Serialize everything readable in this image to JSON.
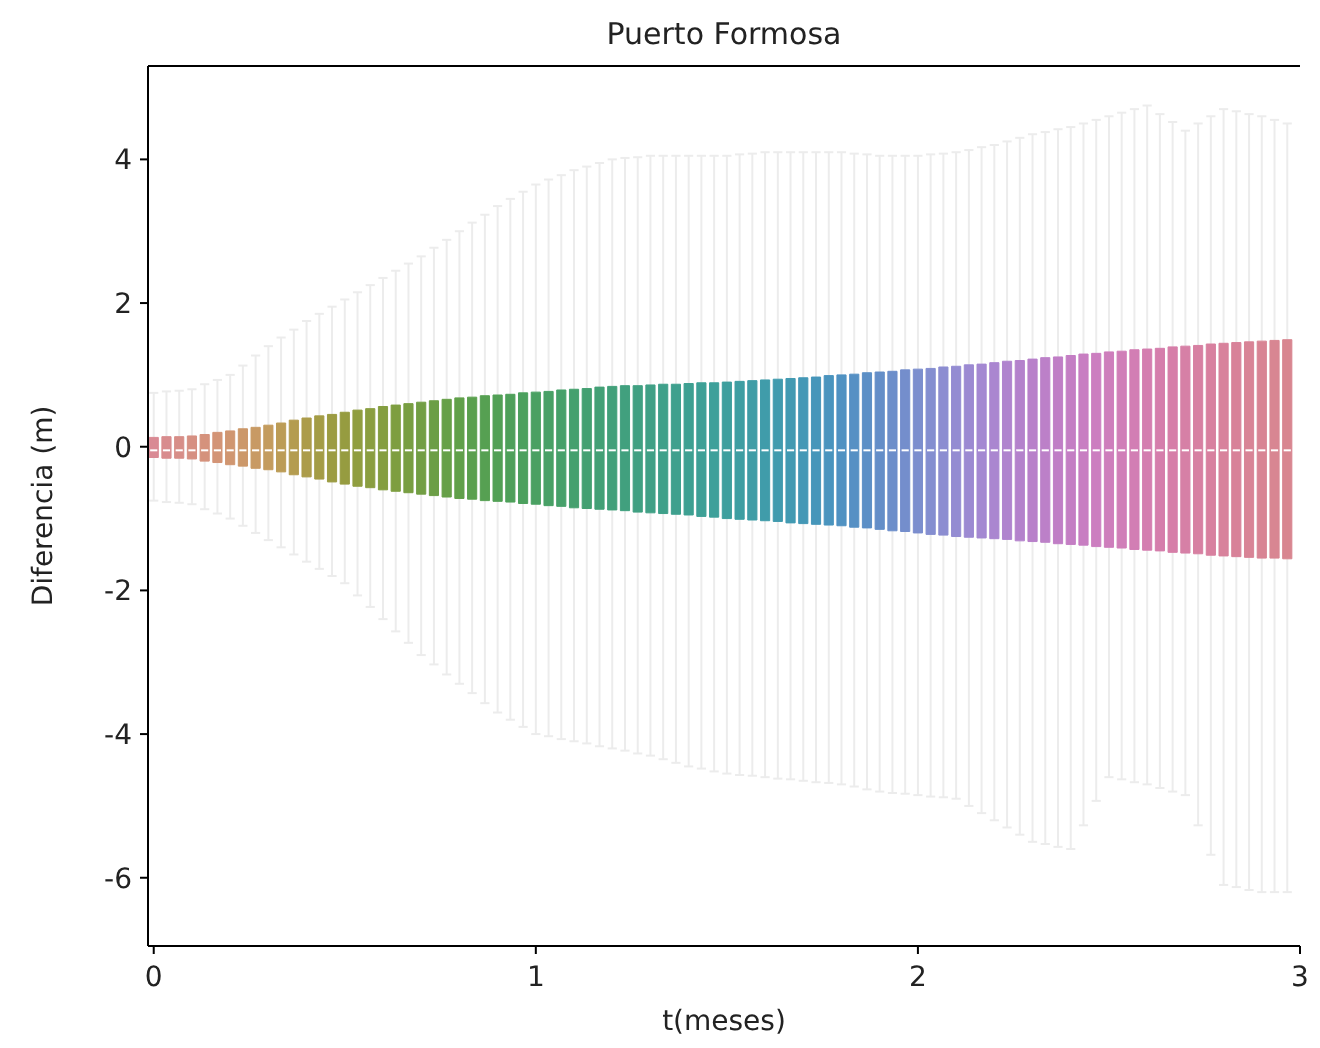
{
  "chart_data": {
    "type": "box",
    "title": "Puerto Formosa",
    "xlabel": "t(meses)",
    "ylabel": "Diferencia (m)",
    "categories": [
      "0",
      null,
      null,
      null,
      null,
      null,
      null,
      null,
      null,
      null,
      null,
      null,
      null,
      null,
      null,
      null,
      null,
      null,
      null,
      null,
      null,
      null,
      null,
      null,
      null,
      null,
      null,
      null,
      null,
      null,
      "1",
      null,
      null,
      null,
      null,
      null,
      null,
      null,
      null,
      null,
      null,
      null,
      null,
      null,
      null,
      null,
      null,
      null,
      null,
      null,
      null,
      null,
      null,
      null,
      null,
      null,
      null,
      null,
      null,
      null,
      "2",
      null,
      null,
      null,
      null,
      null,
      null,
      null,
      null,
      null,
      null,
      null,
      null,
      null,
      null,
      null,
      null,
      null,
      null,
      null,
      null,
      null,
      null,
      null,
      null,
      null,
      null,
      null,
      null,
      null,
      "3"
    ],
    "boxes": [
      {
        "low": -0.75,
        "q1": -0.15,
        "median": -0.05,
        "q3": 0.13,
        "high": 0.75
      },
      {
        "low": -0.77,
        "q1": -0.16,
        "median": -0.05,
        "q3": 0.14,
        "high": 0.77
      },
      {
        "low": -0.78,
        "q1": -0.16,
        "median": -0.05,
        "q3": 0.14,
        "high": 0.78
      },
      {
        "low": -0.8,
        "q1": -0.17,
        "median": -0.05,
        "q3": 0.15,
        "high": 0.8
      },
      {
        "low": -0.87,
        "q1": -0.2,
        "median": -0.05,
        "q3": 0.17,
        "high": 0.87
      },
      {
        "low": -0.93,
        "q1": -0.22,
        "median": -0.05,
        "q3": 0.2,
        "high": 0.93
      },
      {
        "low": -1.0,
        "q1": -0.25,
        "median": -0.05,
        "q3": 0.22,
        "high": 1.0
      },
      {
        "low": -1.1,
        "q1": -0.27,
        "median": -0.05,
        "q3": 0.25,
        "high": 1.13
      },
      {
        "low": -1.2,
        "q1": -0.3,
        "median": -0.05,
        "q3": 0.27,
        "high": 1.27
      },
      {
        "low": -1.3,
        "q1": -0.32,
        "median": -0.05,
        "q3": 0.3,
        "high": 1.4
      },
      {
        "low": -1.4,
        "q1": -0.35,
        "median": -0.05,
        "q3": 0.33,
        "high": 1.52
      },
      {
        "low": -1.5,
        "q1": -0.39,
        "median": -0.05,
        "q3": 0.37,
        "high": 1.63
      },
      {
        "low": -1.6,
        "q1": -0.42,
        "median": -0.05,
        "q3": 0.4,
        "high": 1.75
      },
      {
        "low": -1.7,
        "q1": -0.45,
        "median": -0.05,
        "q3": 0.43,
        "high": 1.85
      },
      {
        "low": -1.8,
        "q1": -0.49,
        "median": -0.05,
        "q3": 0.45,
        "high": 1.95
      },
      {
        "low": -1.9,
        "q1": -0.52,
        "median": -0.05,
        "q3": 0.48,
        "high": 2.05
      },
      {
        "low": -2.07,
        "q1": -0.55,
        "median": -0.05,
        "q3": 0.51,
        "high": 2.15
      },
      {
        "low": -2.23,
        "q1": -0.57,
        "median": -0.05,
        "q3": 0.53,
        "high": 2.25
      },
      {
        "low": -2.4,
        "q1": -0.6,
        "median": -0.05,
        "q3": 0.56,
        "high": 2.35
      },
      {
        "low": -2.57,
        "q1": -0.62,
        "median": -0.05,
        "q3": 0.58,
        "high": 2.45
      },
      {
        "low": -2.73,
        "q1": -0.64,
        "median": -0.05,
        "q3": 0.6,
        "high": 2.55
      },
      {
        "low": -2.9,
        "q1": -0.66,
        "median": -0.05,
        "q3": 0.62,
        "high": 2.65
      },
      {
        "low": -3.03,
        "q1": -0.68,
        "median": -0.05,
        "q3": 0.64,
        "high": 2.77
      },
      {
        "low": -3.17,
        "q1": -0.7,
        "median": -0.05,
        "q3": 0.66,
        "high": 2.88
      },
      {
        "low": -3.3,
        "q1": -0.72,
        "median": -0.05,
        "q3": 0.68,
        "high": 3.0
      },
      {
        "low": -3.43,
        "q1": -0.73,
        "median": -0.05,
        "q3": 0.69,
        "high": 3.12
      },
      {
        "low": -3.57,
        "q1": -0.75,
        "median": -0.05,
        "q3": 0.71,
        "high": 3.23
      },
      {
        "low": -3.7,
        "q1": -0.76,
        "median": -0.05,
        "q3": 0.72,
        "high": 3.35
      },
      {
        "low": -3.8,
        "q1": -0.77,
        "median": -0.05,
        "q3": 0.73,
        "high": 3.45
      },
      {
        "low": -3.9,
        "q1": -0.79,
        "median": -0.05,
        "q3": 0.75,
        "high": 3.55
      },
      {
        "low": -4.0,
        "q1": -0.8,
        "median": -0.05,
        "q3": 0.76,
        "high": 3.65
      },
      {
        "low": -4.03,
        "q1": -0.82,
        "median": -0.05,
        "q3": 0.77,
        "high": 3.72
      },
      {
        "low": -4.07,
        "q1": -0.83,
        "median": -0.05,
        "q3": 0.79,
        "high": 3.78
      },
      {
        "low": -4.1,
        "q1": -0.85,
        "median": -0.05,
        "q3": 0.8,
        "high": 3.85
      },
      {
        "low": -4.13,
        "q1": -0.86,
        "median": -0.05,
        "q3": 0.81,
        "high": 3.9
      },
      {
        "low": -4.17,
        "q1": -0.87,
        "median": -0.05,
        "q3": 0.83,
        "high": 3.95
      },
      {
        "low": -4.2,
        "q1": -0.88,
        "median": -0.05,
        "q3": 0.84,
        "high": 4.0
      },
      {
        "low": -4.23,
        "q1": -0.89,
        "median": -0.05,
        "q3": 0.85,
        "high": 4.02
      },
      {
        "low": -4.27,
        "q1": -0.91,
        "median": -0.05,
        "q3": 0.85,
        "high": 4.03
      },
      {
        "low": -4.3,
        "q1": -0.92,
        "median": -0.05,
        "q3": 0.86,
        "high": 4.05
      },
      {
        "low": -4.35,
        "q1": -0.93,
        "median": -0.05,
        "q3": 0.87,
        "high": 4.05
      },
      {
        "low": -4.4,
        "q1": -0.94,
        "median": -0.05,
        "q3": 0.87,
        "high": 4.05
      },
      {
        "low": -4.45,
        "q1": -0.95,
        "median": -0.05,
        "q3": 0.88,
        "high": 4.05
      },
      {
        "low": -4.48,
        "q1": -0.97,
        "median": -0.05,
        "q3": 0.89,
        "high": 4.05
      },
      {
        "low": -4.52,
        "q1": -0.98,
        "median": -0.05,
        "q3": 0.89,
        "high": 4.05
      },
      {
        "low": -4.55,
        "q1": -1.0,
        "median": -0.05,
        "q3": 0.9,
        "high": 4.05
      },
      {
        "low": -4.57,
        "q1": -1.01,
        "median": -0.05,
        "q3": 0.91,
        "high": 4.07
      },
      {
        "low": -4.58,
        "q1": -1.02,
        "median": -0.05,
        "q3": 0.92,
        "high": 4.08
      },
      {
        "low": -4.6,
        "q1": -1.03,
        "median": -0.05,
        "q3": 0.93,
        "high": 4.1
      },
      {
        "low": -4.62,
        "q1": -1.04,
        "median": -0.05,
        "q3": 0.94,
        "high": 4.1
      },
      {
        "low": -4.63,
        "q1": -1.06,
        "median": -0.05,
        "q3": 0.95,
        "high": 4.1
      },
      {
        "low": -4.65,
        "q1": -1.07,
        "median": -0.05,
        "q3": 0.96,
        "high": 4.1
      },
      {
        "low": -4.67,
        "q1": -1.08,
        "median": -0.05,
        "q3": 0.97,
        "high": 4.1
      },
      {
        "low": -4.68,
        "q1": -1.09,
        "median": -0.05,
        "q3": 0.99,
        "high": 4.1
      },
      {
        "low": -4.7,
        "q1": -1.1,
        "median": -0.05,
        "q3": 1.0,
        "high": 4.1
      },
      {
        "low": -4.73,
        "q1": -1.12,
        "median": -0.05,
        "q3": 1.01,
        "high": 4.08
      },
      {
        "low": -4.77,
        "q1": -1.13,
        "median": -0.05,
        "q3": 1.03,
        "high": 4.07
      },
      {
        "low": -4.8,
        "q1": -1.15,
        "median": -0.05,
        "q3": 1.04,
        "high": 4.05
      },
      {
        "low": -4.82,
        "q1": -1.17,
        "median": -0.05,
        "q3": 1.05,
        "high": 4.05
      },
      {
        "low": -4.83,
        "q1": -1.18,
        "median": -0.05,
        "q3": 1.07,
        "high": 4.05
      },
      {
        "low": -4.85,
        "q1": -1.2,
        "median": -0.05,
        "q3": 1.08,
        "high": 4.05
      },
      {
        "low": -4.87,
        "q1": -1.22,
        "median": -0.05,
        "q3": 1.09,
        "high": 4.07
      },
      {
        "low": -4.88,
        "q1": -1.23,
        "median": -0.05,
        "q3": 1.11,
        "high": 4.08
      },
      {
        "low": -4.9,
        "q1": -1.25,
        "median": -0.05,
        "q3": 1.12,
        "high": 4.1
      },
      {
        "low": -5.0,
        "q1": -1.26,
        "median": -0.05,
        "q3": 1.14,
        "high": 4.13
      },
      {
        "low": -5.1,
        "q1": -1.27,
        "median": -0.05,
        "q3": 1.15,
        "high": 4.17
      },
      {
        "low": -5.2,
        "q1": -1.28,
        "median": -0.05,
        "q3": 1.17,
        "high": 4.2
      },
      {
        "low": -5.3,
        "q1": -1.29,
        "median": -0.05,
        "q3": 1.19,
        "high": 4.25
      },
      {
        "low": -5.4,
        "q1": -1.31,
        "median": -0.05,
        "q3": 1.2,
        "high": 4.3
      },
      {
        "low": -5.5,
        "q1": -1.32,
        "median": -0.05,
        "q3": 1.22,
        "high": 4.35
      },
      {
        "low": -5.53,
        "q1": -1.33,
        "median": -0.05,
        "q3": 1.24,
        "high": 4.38
      },
      {
        "low": -5.57,
        "q1": -1.35,
        "median": -0.05,
        "q3": 1.25,
        "high": 4.42
      },
      {
        "low": -5.6,
        "q1": -1.36,
        "median": -0.05,
        "q3": 1.27,
        "high": 4.45
      },
      {
        "low": -5.27,
        "q1": -1.37,
        "median": -0.05,
        "q3": 1.29,
        "high": 4.5
      },
      {
        "low": -4.93,
        "q1": -1.39,
        "median": -0.05,
        "q3": 1.3,
        "high": 4.55
      },
      {
        "low": -4.6,
        "q1": -1.4,
        "median": -0.05,
        "q3": 1.32,
        "high": 4.6
      },
      {
        "low": -4.63,
        "q1": -1.41,
        "median": -0.05,
        "q3": 1.33,
        "high": 4.65
      },
      {
        "low": -4.67,
        "q1": -1.43,
        "median": -0.05,
        "q3": 1.35,
        "high": 4.7
      },
      {
        "low": -4.7,
        "q1": -1.44,
        "median": -0.05,
        "q3": 1.36,
        "high": 4.75
      },
      {
        "low": -4.75,
        "q1": -1.45,
        "median": -0.05,
        "q3": 1.37,
        "high": 4.63
      },
      {
        "low": -4.8,
        "q1": -1.47,
        "median": -0.05,
        "q3": 1.39,
        "high": 4.52
      },
      {
        "low": -4.85,
        "q1": -1.48,
        "median": -0.05,
        "q3": 1.4,
        "high": 4.4
      },
      {
        "low": -5.27,
        "q1": -1.49,
        "median": -0.05,
        "q3": 1.41,
        "high": 4.5
      },
      {
        "low": -5.68,
        "q1": -1.51,
        "median": -0.05,
        "q3": 1.43,
        "high": 4.6
      },
      {
        "low": -6.1,
        "q1": -1.52,
        "median": -0.05,
        "q3": 1.44,
        "high": 4.7
      },
      {
        "low": -6.13,
        "q1": -1.53,
        "median": -0.05,
        "q3": 1.45,
        "high": 4.67
      },
      {
        "low": -6.17,
        "q1": -1.54,
        "median": -0.05,
        "q3": 1.46,
        "high": 4.63
      },
      {
        "low": -6.2,
        "q1": -1.55,
        "median": -0.05,
        "q3": 1.47,
        "high": 4.6
      },
      {
        "low": -6.2,
        "q1": -1.55,
        "median": -0.05,
        "q3": 1.48,
        "high": 4.55
      },
      {
        "low": -6.2,
        "q1": -1.56,
        "median": -0.05,
        "q3": 1.49,
        "high": 4.5
      },
      null
    ],
    "colors": [
      "#d98a94",
      "#d88c8e",
      "#d78e88",
      "#d69082",
      "#d5927c",
      "#d39476",
      "#d09670",
      "#cc986a",
      "#c89a64",
      "#c49c5e",
      "#bc9c56",
      "#b49c50",
      "#ac9c4a",
      "#a49c46",
      "#9c9c42",
      "#969c40",
      "#909e40",
      "#8a9e40",
      "#849e40",
      "#7e9e40",
      "#789e42",
      "#729e44",
      "#6c9e46",
      "#66a048",
      "#60a04a",
      "#5aa04e",
      "#56a052",
      "#52a056",
      "#4ea05a",
      "#4ca05e",
      "#4aa062",
      "#48a066",
      "#46a06a",
      "#45a06e",
      "#44a072",
      "#43a076",
      "#42a07a",
      "#41a07e",
      "#40a082",
      "#40a086",
      "#3fa08a",
      "#3fa08e",
      "#3ea092",
      "#3ea096",
      "#3ea09a",
      "#3e9f9e",
      "#3e9ea2",
      "#3f9da6",
      "#409caa",
      "#419bae",
      "#429ab2",
      "#4498b6",
      "#4696ba",
      "#4a94be",
      "#5092c2",
      "#5690c4",
      "#5c8fc6",
      "#648ec8",
      "#6c8eca",
      "#748ecc",
      "#7c8ece",
      "#848ed0",
      "#8c8dd1",
      "#948cd2",
      "#9c8ad2",
      "#a488d2",
      "#aa86d0",
      "#b084ce",
      "#b482cc",
      "#b880ca",
      "#bc80c8",
      "#c07ec6",
      "#c47ec4",
      "#c87ec2",
      "#cc7ec0",
      "#ce7ebc",
      "#d07eb8",
      "#d27eb4",
      "#d47eb0",
      "#d57eac",
      "#d67ea8",
      "#d680a6",
      "#d780a2",
      "#d8809f",
      "#d8829c",
      "#d88299",
      "#d88496",
      "#d88494",
      "#d88692",
      "#d88690",
      null
    ],
    "ylim": [
      -6.95,
      5.3
    ],
    "yticks": [
      -6,
      -4,
      -2,
      0,
      2,
      4
    ]
  }
}
